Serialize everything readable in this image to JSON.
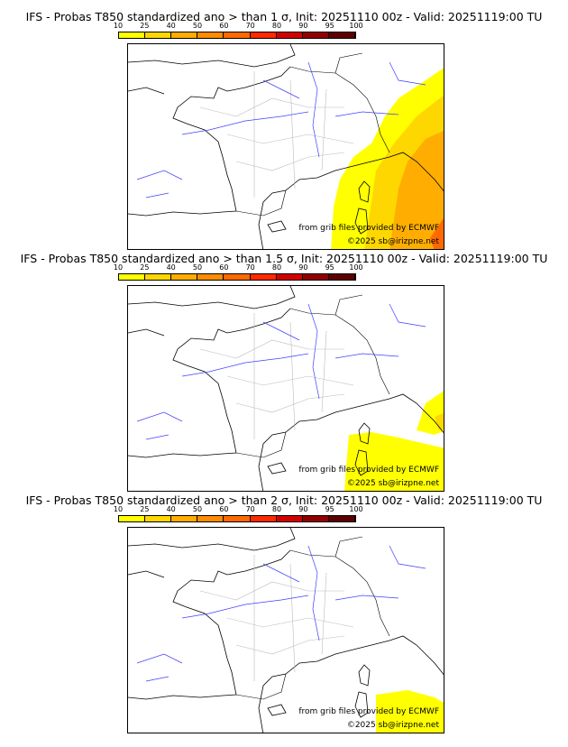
{
  "colorbar": {
    "ticks": [
      "10",
      "25",
      "40",
      "50",
      "60",
      "70",
      "80",
      "90",
      "95",
      "100"
    ],
    "colors": [
      "#ffff00",
      "#ffd700",
      "#ffad00",
      "#ff8c00",
      "#ff6a00",
      "#ff2a00",
      "#d40000",
      "#930000",
      "#5e0000"
    ]
  },
  "panels": [
    {
      "title": "IFS - Probas T850  standardized ano > than 1 σ, Init: 20251110 00z - Valid: 20251119:00 TU"
    },
    {
      "title": "IFS - Probas T850  standardized ano > than 1.5 σ, Init: 20251110 00z - Valid: 20251119:00 TU"
    },
    {
      "title": "IFS - Probas T850  standardized ano > than 2 σ, Init: 20251110 00z - Valid: 20251119:00 TU"
    }
  ],
  "credits": {
    "source": "from grib files provided by ECMWF",
    "copyright": "©2025 sb@irizpne.net"
  }
}
